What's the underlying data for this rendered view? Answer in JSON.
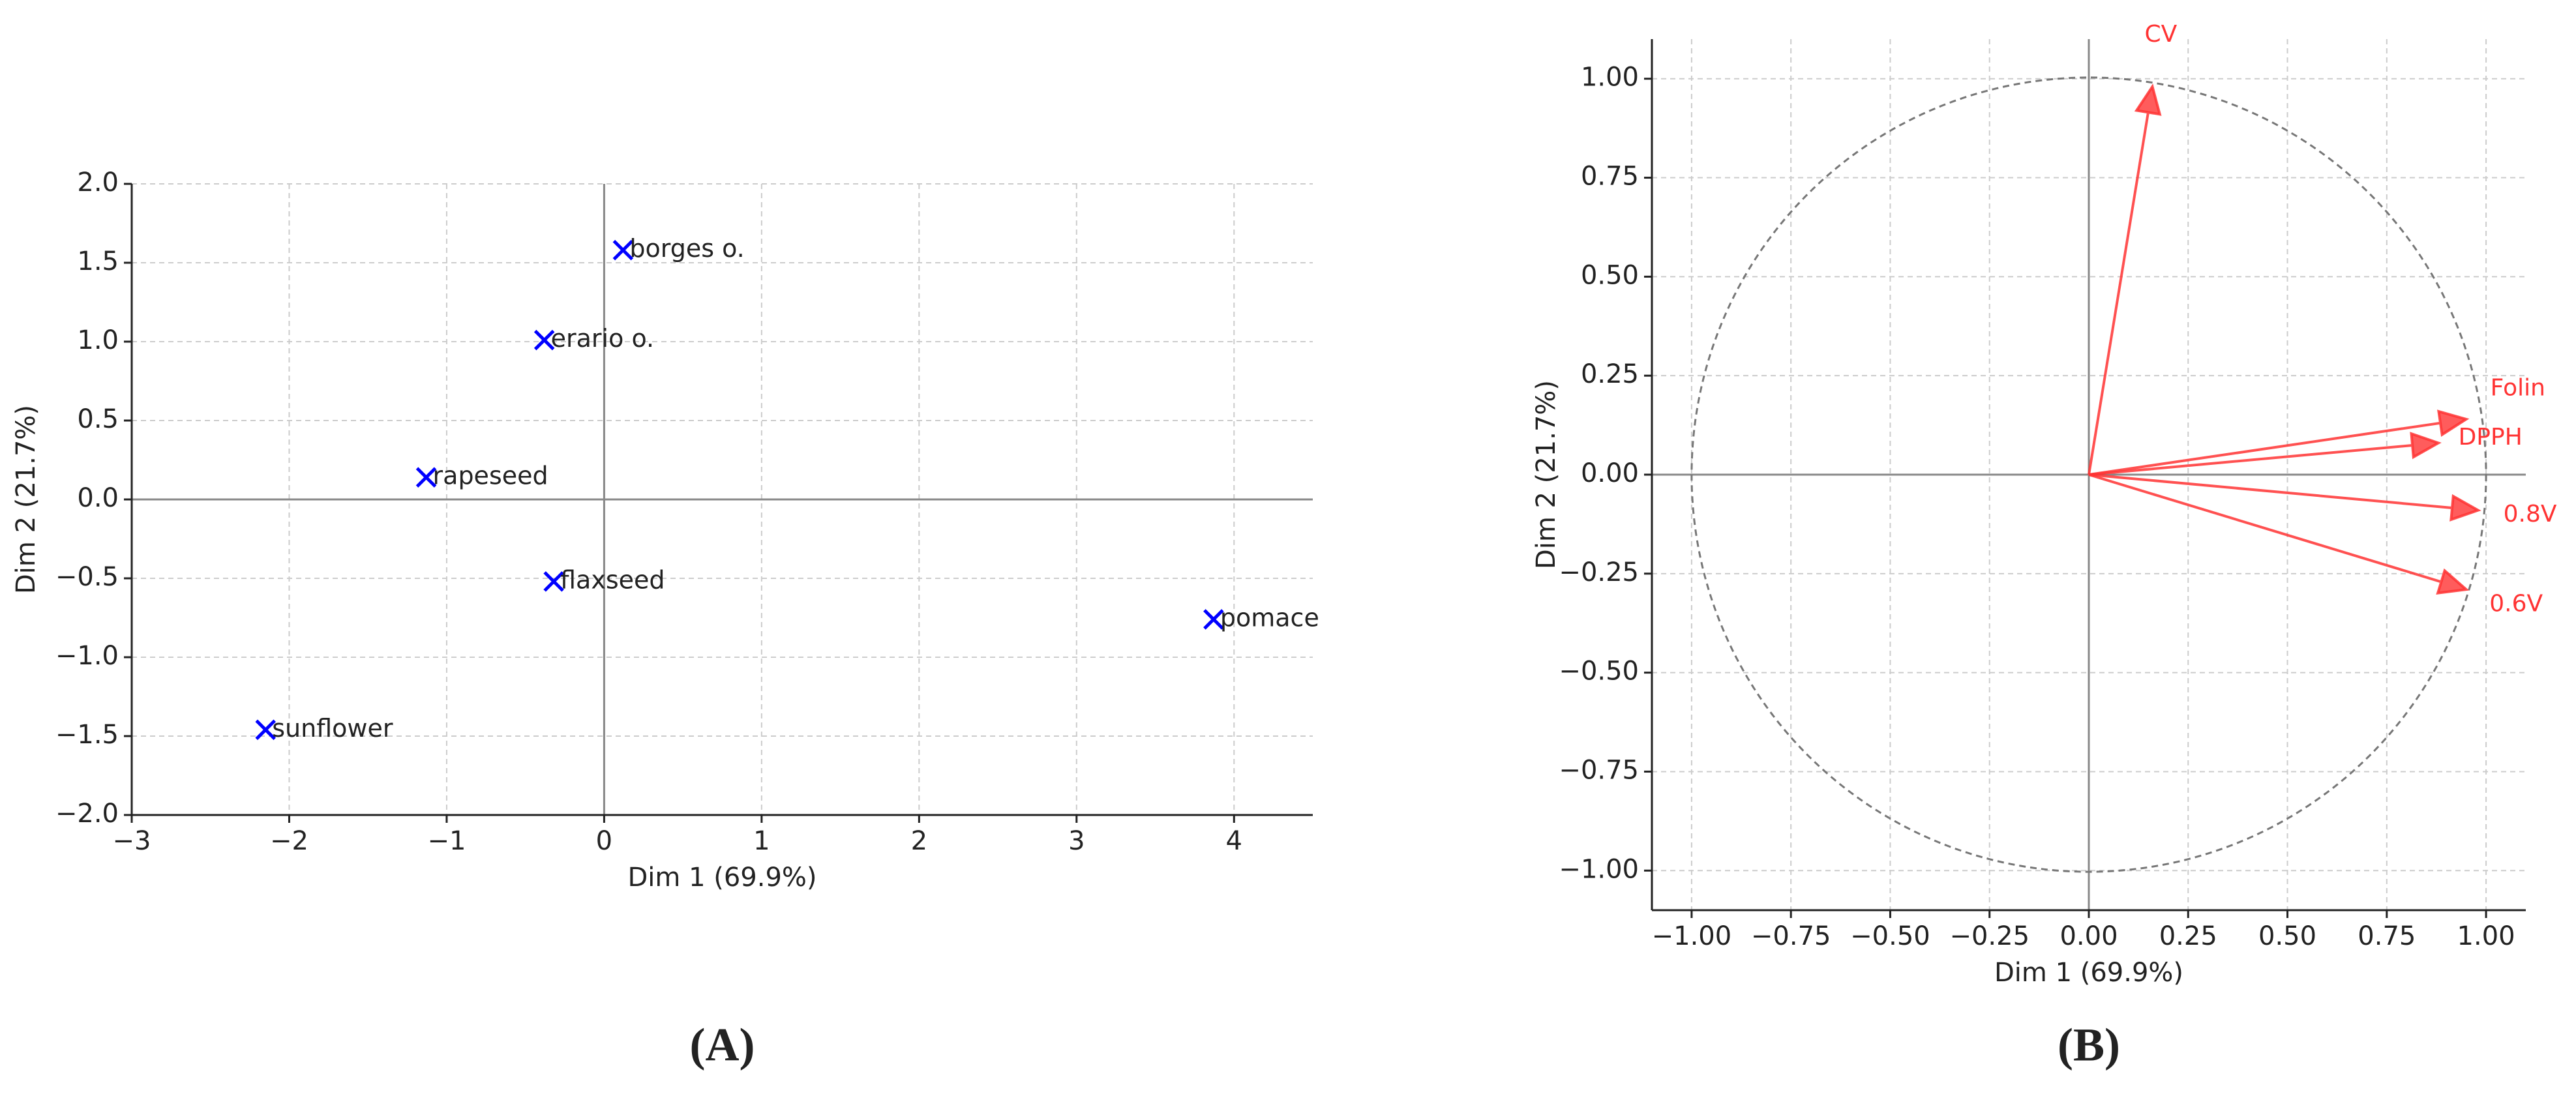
{
  "chart_data": [
    {
      "type": "scatter",
      "panel_label": "(A)",
      "xlabel": "Dim 1 (69.9%)",
      "ylabel": "Dim 2 (21.7%)",
      "labels": [
        "borges o.",
        "erario o.",
        "rapeseed",
        "flaxseed",
        "pomace",
        "sunflower"
      ],
      "x": [
        0.12,
        -0.38,
        -1.13,
        -0.32,
        3.87,
        -2.15
      ],
      "values": [
        1.58,
        1.01,
        0.14,
        -0.52,
        -0.76,
        -1.46
      ],
      "color": "#0000ff",
      "xlim": [
        -3,
        4.5
      ],
      "ylim": [
        -2,
        2
      ],
      "xticks": [
        {
          "value": -3,
          "label": "−3"
        },
        {
          "value": -2,
          "label": "−2"
        },
        {
          "value": -1,
          "label": "−1"
        },
        0,
        1,
        2,
        3,
        4
      ],
      "yticks": [
        {
          "value": -2,
          "label": "−2.0"
        },
        {
          "value": -1.5,
          "label": "−1.5"
        },
        {
          "value": -1,
          "label": "−1.0"
        },
        {
          "value": -0.5,
          "label": "−0.5"
        },
        {
          "value": 0,
          "label": "0.0"
        },
        {
          "value": 0.5,
          "label": "0.5"
        },
        {
          "value": 1,
          "label": "1.0"
        },
        {
          "value": 1.5,
          "label": "1.5"
        },
        {
          "value": 2,
          "label": "2.0"
        }
      ],
      "grid": true
    },
    {
      "type": "vector",
      "panel_label": "(B)",
      "xlabel": "Dim 1 (69.9%)",
      "ylabel": "Dim 2 (21.7%)",
      "labels": [
        "CV",
        "Folin",
        "DPPH",
        "0.8V",
        "0.6V"
      ],
      "x": [
        0.16,
        0.95,
        0.88,
        0.98,
        0.95
      ],
      "values": [
        0.98,
        0.14,
        0.08,
        -0.09,
        -0.29
      ],
      "color": "#ff3333",
      "xlim": [
        -1.1,
        1.1
      ],
      "ylim": [
        -1.1,
        1.1
      ],
      "xticks": [
        {
          "value": -1,
          "label": "−1.00"
        },
        {
          "value": -0.75,
          "label": "−0.75"
        },
        {
          "value": -0.5,
          "label": "−0.50"
        },
        {
          "value": -0.25,
          "label": "−0.25"
        },
        {
          "value": 0,
          "label": "0.00"
        },
        {
          "value": 0.25,
          "label": "0.25"
        },
        {
          "value": 0.5,
          "label": "0.50"
        },
        {
          "value": 0.75,
          "label": "0.75"
        },
        {
          "value": 1,
          "label": "1.00"
        }
      ],
      "yticks": [
        {
          "value": -1,
          "label": "−1.00"
        },
        {
          "value": -0.75,
          "label": "−0.75"
        },
        {
          "value": -0.5,
          "label": "−0.50"
        },
        {
          "value": -0.25,
          "label": "−0.25"
        },
        {
          "value": 0,
          "label": "0.00"
        },
        {
          "value": 0.25,
          "label": "0.25"
        },
        {
          "value": 0.5,
          "label": "0.50"
        },
        {
          "value": 0.75,
          "label": "0.75"
        },
        {
          "value": 1,
          "label": "1.00"
        }
      ],
      "grid": true
    }
  ]
}
